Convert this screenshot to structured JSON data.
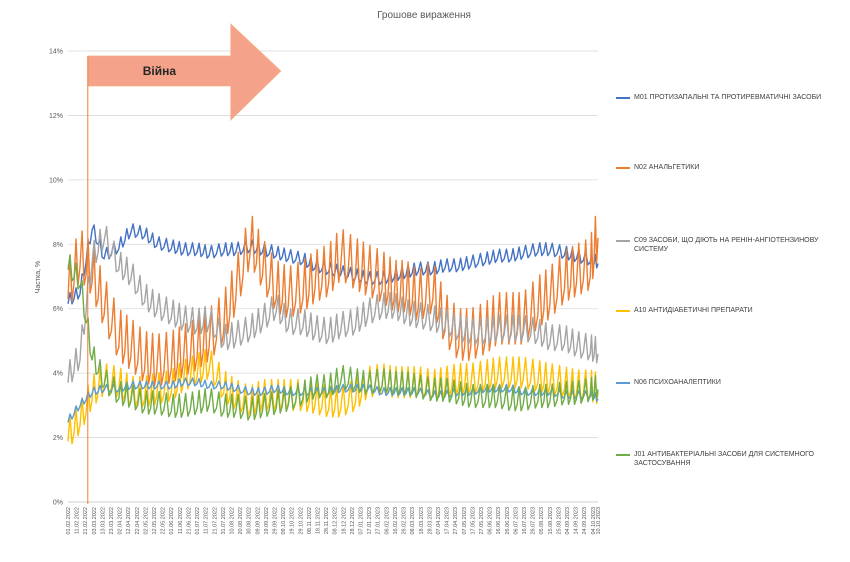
{
  "chart_data": {
    "type": "line",
    "title": "Грошове вираження",
    "ylabel": "Частка, %",
    "xlabel": "",
    "ylim": [
      0,
      14
    ],
    "y_ticks": [
      "0%",
      "2%",
      "4%",
      "6%",
      "8%",
      "10%",
      "12%",
      "14%"
    ],
    "grid": true,
    "legend_position": "right",
    "annotation": {
      "text": "Війна",
      "start": "01.02.2022",
      "end": "15.08.2022",
      "color": "#f4a38a"
    },
    "war_marker_date": "24.02.2022",
    "x_tick_labels": [
      "01.02.2022",
      "11.02.2022",
      "21.02.2022",
      "03.03.2022",
      "13.03.2022",
      "23.03.2022",
      "02.04.2022",
      "12.04.2022",
      "22.04.2022",
      "02.05.2022",
      "12.05.2022",
      "22.05.2022",
      "01.06.2022",
      "11.06.2022",
      "21.06.2022",
      "01.07.2022",
      "11.07.2022",
      "21.07.2022",
      "31.07.2022",
      "10.08.2022",
      "20.08.2022",
      "30.08.2022",
      "09.09.2022",
      "19.09.2022",
      "29.09.2022",
      "09.10.2022",
      "19.10.2022",
      "29.10.2022",
      "08.11.2022",
      "18.11.2022",
      "28.11.2022",
      "08.12.2022",
      "18.12.2022",
      "28.12.2022",
      "07.01.2023",
      "17.01.2023",
      "27.01.2023",
      "06.02.2023",
      "16.02.2023",
      "26.02.2023",
      "08.03.2023",
      "18.03.2023",
      "28.03.2023",
      "07.04.2023",
      "17.04.2023",
      "27.04.2023",
      "07.05.2023",
      "17.05.2023",
      "27.05.2023",
      "06.06.2023",
      "16.06.2023",
      "26.06.2023",
      "06.07.2023",
      "16.07.2023",
      "26.07.2023",
      "05.08.2023",
      "15.08.2023",
      "25.08.2023",
      "04.09.2023",
      "14.09.2023",
      "24.09.2023",
      "04.10.2023",
      "10.10.2023"
    ],
    "x": [
      "01.02.2022",
      "15.02.2022",
      "01.03.2022",
      "15.03.2022",
      "01.04.2022",
      "15.04.2022",
      "01.05.2022",
      "15.05.2022",
      "01.06.2022",
      "15.06.2022",
      "01.07.2022",
      "15.07.2022",
      "01.08.2022",
      "15.08.2022",
      "01.09.2022",
      "15.09.2022",
      "01.10.2022",
      "15.10.2022",
      "01.11.2022",
      "15.11.2022",
      "01.12.2022",
      "15.12.2022",
      "01.01.2023",
      "15.01.2023",
      "01.02.2023",
      "15.02.2023",
      "01.03.2023",
      "15.03.2023",
      "01.04.2023",
      "15.04.2023",
      "01.05.2023",
      "15.05.2023",
      "01.06.2023",
      "15.06.2023",
      "01.07.2023",
      "15.07.2023",
      "01.08.2023",
      "15.08.2023",
      "01.09.2023",
      "15.09.2023",
      "01.10.2023",
      "10.10.2023"
    ],
    "series": [
      {
        "name": "M01 ПРОТИЗАПАЛЬНІ ТА ПРОТИРЕВМАТИЧНІ ЗАСОБИ",
        "color": "#4472c4",
        "values": [
          6.2,
          6.5,
          8.5,
          7.6,
          7.9,
          8.4,
          8.3,
          8.0,
          7.9,
          7.8,
          7.8,
          7.7,
          7.8,
          7.8,
          7.9,
          7.8,
          7.7,
          7.6,
          7.5,
          7.3,
          7.2,
          7.1,
          7.0,
          6.9,
          6.9,
          7.0,
          7.1,
          7.2,
          7.2,
          7.3,
          7.3,
          7.4,
          7.5,
          7.6,
          7.6,
          7.7,
          7.8,
          7.8,
          7.7,
          7.6,
          7.5,
          7.4
        ]
      },
      {
        "name": "N02 АНАЛЬГЕТИКИ",
        "color": "#ed7d31",
        "values": [
          6.5,
          7.5,
          7.0,
          6.0,
          5.0,
          4.7,
          4.3,
          4.2,
          4.3,
          4.5,
          4.7,
          5.0,
          5.5,
          6.5,
          8.0,
          7.2,
          6.5,
          6.3,
          6.5,
          6.8,
          7.0,
          7.5,
          7.2,
          7.0,
          6.8,
          6.5,
          6.5,
          6.2,
          6.5,
          5.5,
          5.0,
          5.0,
          5.2,
          5.5,
          5.5,
          5.5,
          6.0,
          6.3,
          6.8,
          7.0,
          7.2,
          8.2
        ]
      },
      {
        "name": "C09 ЗАСОБИ, ЩО ДІЮТЬ НА РЕНІН-АНГІОТЕНЗИНОВУ СИСТЕМУ",
        "color": "#a5a5a5",
        "values": [
          3.8,
          4.5,
          7.5,
          8.2,
          7.3,
          7.0,
          6.3,
          6.0,
          5.8,
          5.6,
          5.5,
          5.6,
          5.0,
          5.1,
          5.3,
          5.6,
          6.0,
          5.5,
          5.5,
          5.3,
          5.2,
          5.4,
          5.5,
          5.8,
          6.0,
          6.0,
          5.8,
          5.7,
          5.6,
          5.5,
          5.3,
          5.2,
          5.2,
          5.3,
          5.3,
          5.3,
          5.2,
          5.0,
          5.0,
          4.8,
          4.7,
          4.6
        ]
      },
      {
        "name": "A10 АНТИДІАБЕТИЧНІ ПРЕПАРАТИ",
        "color": "#ffc000",
        "values": [
          2.0,
          2.5,
          3.3,
          3.7,
          3.6,
          3.3,
          3.3,
          3.4,
          3.5,
          3.8,
          4.0,
          4.2,
          3.5,
          3.2,
          3.0,
          3.2,
          3.2,
          3.2,
          3.2,
          3.1,
          3.0,
          3.0,
          3.2,
          3.6,
          3.7,
          3.6,
          3.6,
          3.6,
          3.5,
          3.6,
          3.7,
          3.7,
          3.8,
          3.9,
          3.9,
          3.9,
          3.8,
          3.7,
          3.6,
          3.5,
          3.5,
          3.4
        ]
      },
      {
        "name": "N06 ПСИХОАНАЛЕПТИКИ",
        "color": "#5b9bd5",
        "values": [
          2.5,
          3.0,
          3.4,
          3.5,
          3.5,
          3.6,
          3.6,
          3.6,
          3.6,
          3.7,
          3.7,
          3.6,
          3.6,
          3.5,
          3.4,
          3.4,
          3.5,
          3.4,
          3.4,
          3.4,
          3.4,
          3.5,
          3.5,
          3.5,
          3.4,
          3.4,
          3.4,
          3.4,
          3.3,
          3.3,
          3.4,
          3.4,
          3.5,
          3.5,
          3.5,
          3.4,
          3.4,
          3.4,
          3.3,
          3.3,
          3.3,
          3.2
        ]
      },
      {
        "name": "J01 АНТИБАКТЕРІАЛЬНІ ЗАСОБИ ДЛЯ СИСТЕМНОГО ЗАСТОСУВАННЯ",
        "color": "#70ad47",
        "values": [
          7.3,
          6.8,
          4.5,
          3.7,
          3.3,
          3.2,
          3.0,
          3.0,
          2.9,
          2.9,
          3.0,
          3.1,
          2.9,
          2.9,
          2.8,
          2.9,
          3.0,
          3.1,
          3.3,
          3.5,
          3.5,
          3.8,
          3.7,
          3.6,
          3.7,
          3.6,
          3.6,
          3.5,
          3.4,
          3.4,
          3.3,
          3.2,
          3.2,
          3.2,
          3.1,
          3.1,
          3.2,
          3.2,
          3.3,
          3.3,
          3.4,
          3.5
        ]
      }
    ]
  }
}
